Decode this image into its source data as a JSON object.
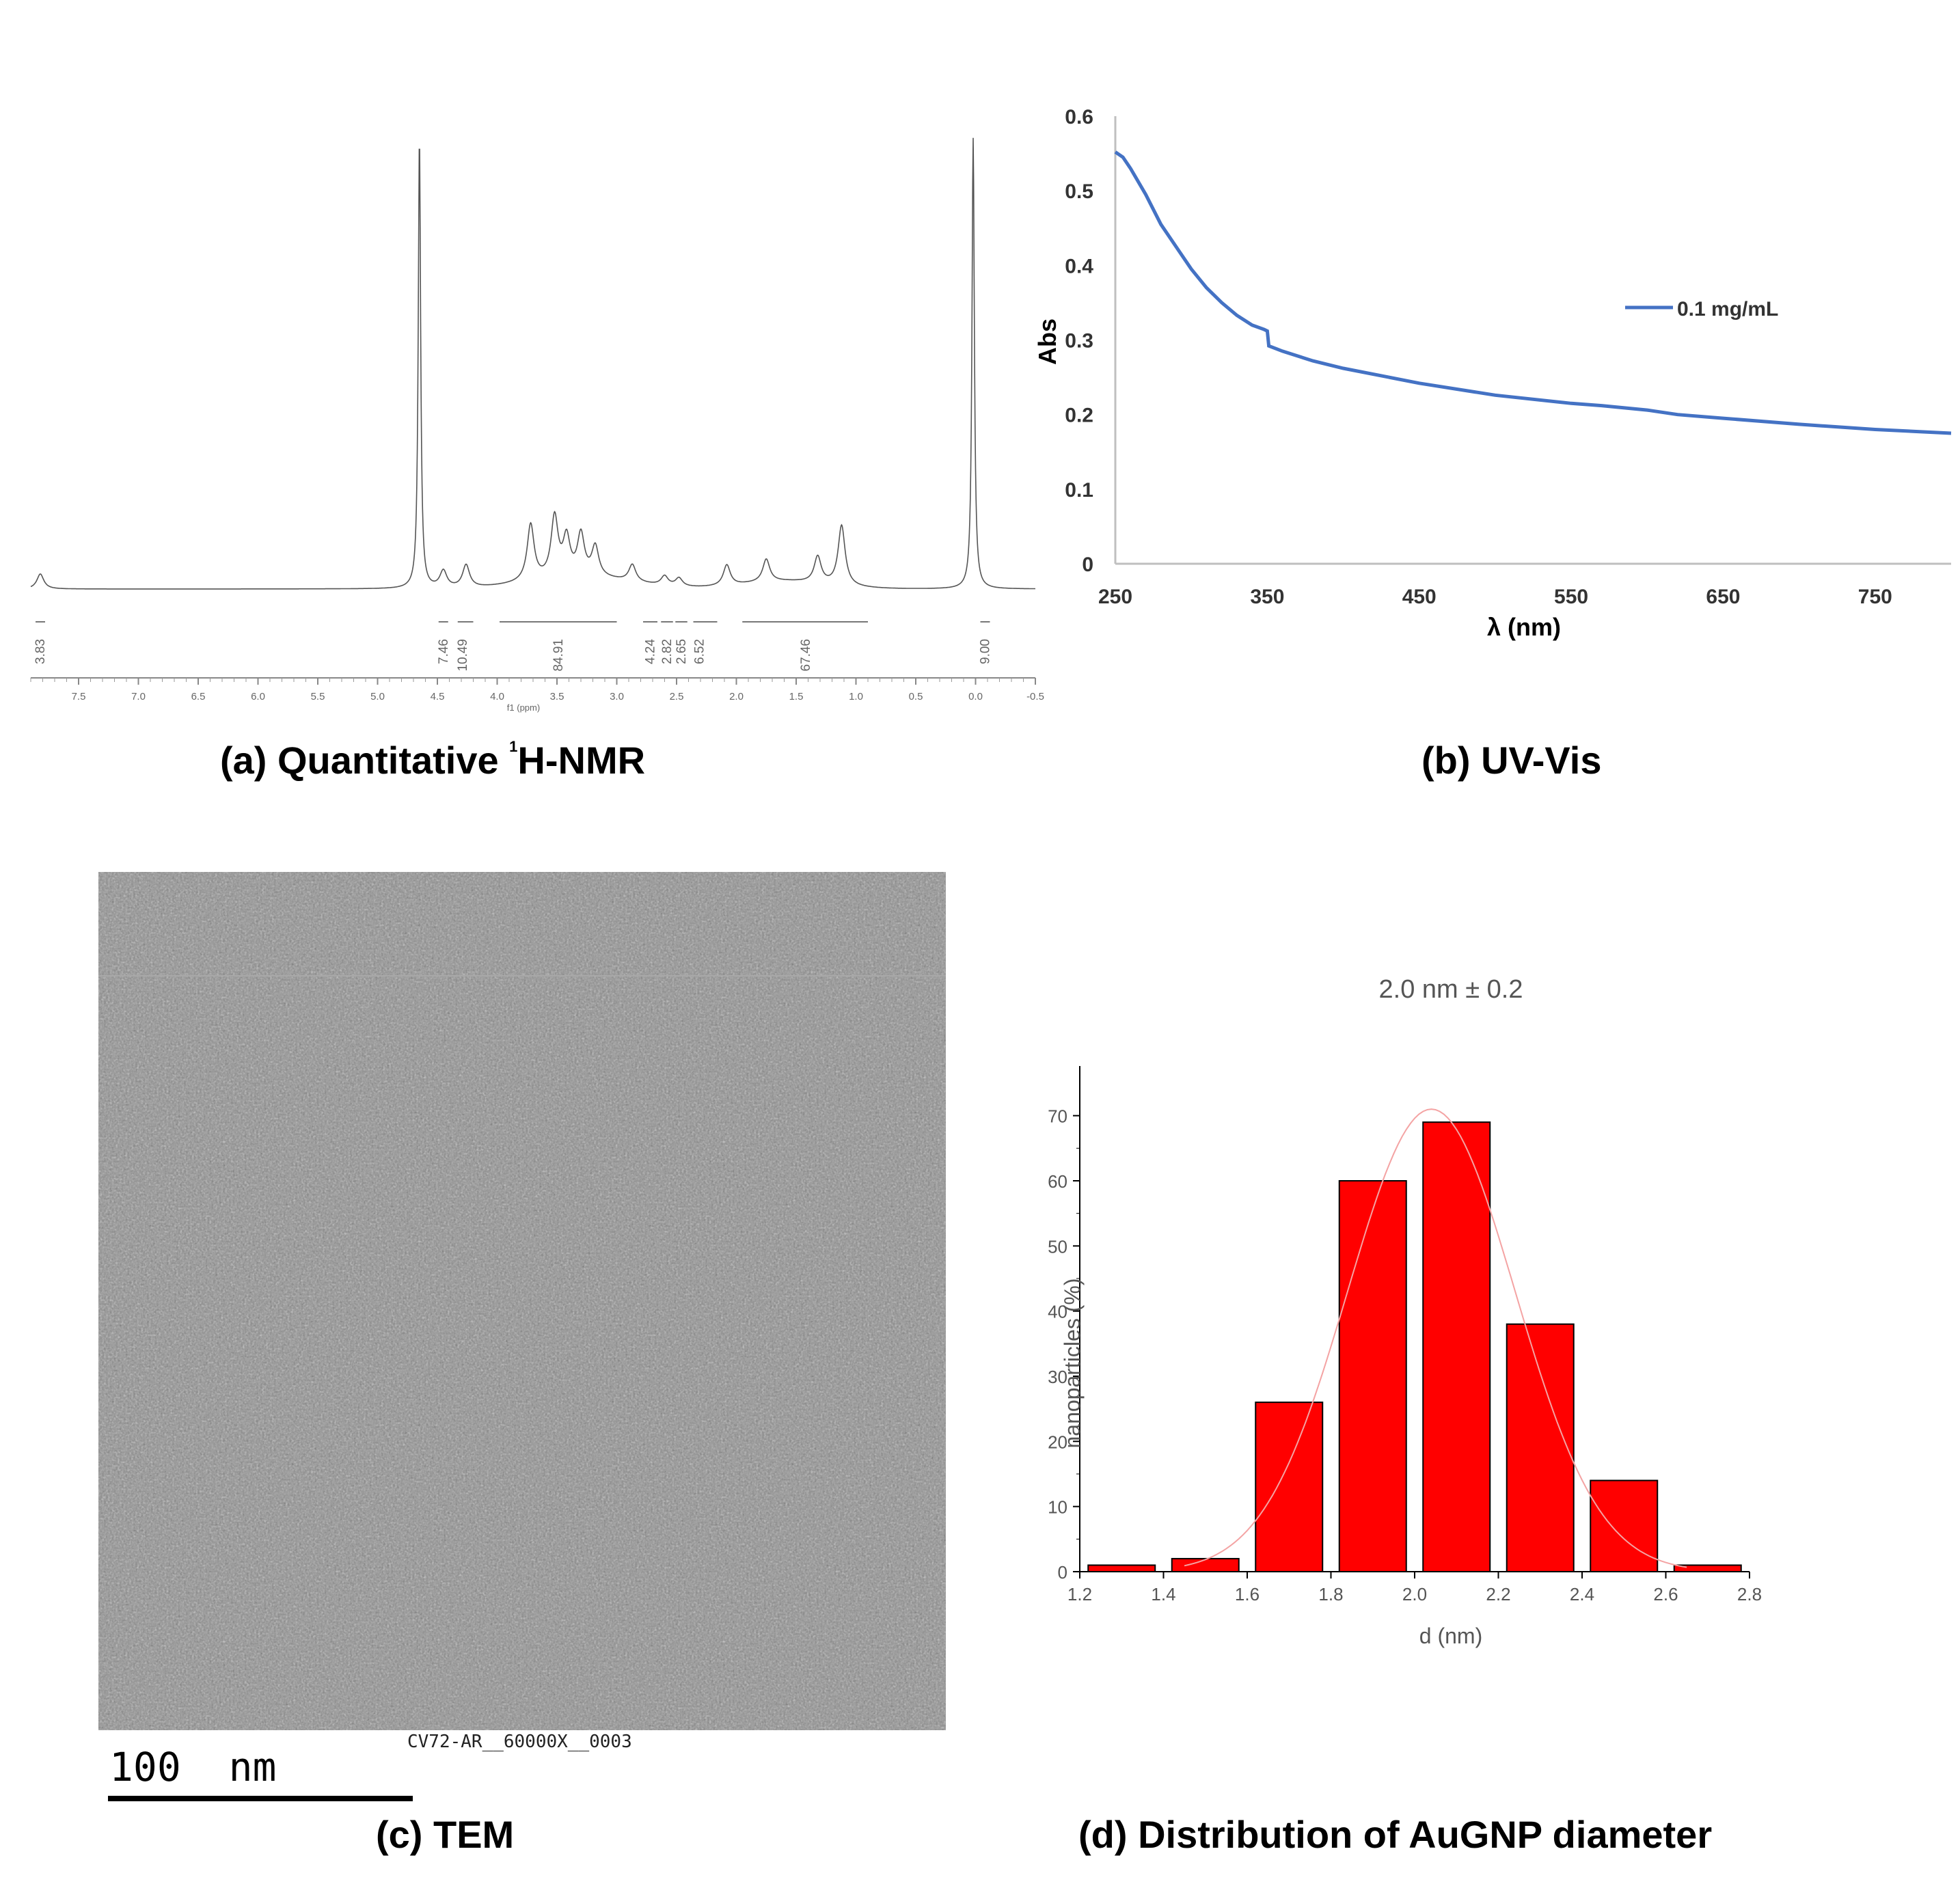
{
  "panels": {
    "a": {
      "caption_prefix": "(a) Quantitative ",
      "caption_super": "1",
      "caption_suffix": "H-NMR",
      "axis_label": "f1 (ppm)"
    },
    "b": {
      "caption": "(b) UV-Vis"
    },
    "c": {
      "caption": "(c) TEM",
      "image_label": "CV72-AR__60000X__0003",
      "scale_bar_label": "100  nm"
    },
    "d": {
      "caption": "(d) Distribution of AuGNP diameter"
    }
  },
  "colors": {
    "uv_line": "#4472c4",
    "bar_fill": "#ff0000",
    "fit_curve": "#f4a3a3",
    "nmr_line": "#555555",
    "tem_gray": "#8f8f8f"
  },
  "chart_data": [
    {
      "id": "nmr",
      "type": "line",
      "x_ticks": [
        "7.5",
        "7.0",
        "6.5",
        "6.0",
        "5.5",
        "5.0",
        "4.5",
        "4.0",
        "3.5",
        "3.0",
        "2.5",
        "2.0",
        "1.5",
        "1.0",
        "0.5",
        "0.0",
        "-0.5"
      ],
      "xlim": [
        7.9,
        -0.5
      ],
      "xlabel": "f1 (ppm)",
      "integrals": [
        {
          "x": 7.82,
          "label": "3.83"
        },
        {
          "x": 4.45,
          "label": "7.46"
        },
        {
          "x": 4.29,
          "label": "10.49"
        },
        {
          "x": 3.49,
          "label": "84.91"
        },
        {
          "x": 2.72,
          "label": "4.24"
        },
        {
          "x": 2.58,
          "label": "2.82"
        },
        {
          "x": 2.46,
          "label": "2.65"
        },
        {
          "x": 2.31,
          "label": "6.52"
        },
        {
          "x": 1.42,
          "label": "67.46"
        },
        {
          "x": -0.08,
          "label": "9.00"
        }
      ],
      "peaks": [
        {
          "ppm": 7.82,
          "height": 0.04
        },
        {
          "ppm": 4.65,
          "height": 1.2
        },
        {
          "ppm": 4.45,
          "height": 0.045
        },
        {
          "ppm": 4.26,
          "height": 0.06
        },
        {
          "ppm": 3.72,
          "height": 0.15
        },
        {
          "ppm": 3.52,
          "height": 0.16
        },
        {
          "ppm": 3.42,
          "height": 0.1
        },
        {
          "ppm": 3.3,
          "height": 0.11
        },
        {
          "ppm": 3.18,
          "height": 0.08
        },
        {
          "ppm": 2.87,
          "height": 0.045
        },
        {
          "ppm": 2.6,
          "height": 0.025
        },
        {
          "ppm": 2.48,
          "height": 0.022
        },
        {
          "ppm": 2.08,
          "height": 0.055
        },
        {
          "ppm": 1.75,
          "height": 0.06
        },
        {
          "ppm": 1.32,
          "height": 0.07
        },
        {
          "ppm": 1.12,
          "height": 0.16
        },
        {
          "ppm": 0.02,
          "height": 1.2
        }
      ]
    },
    {
      "id": "uvvis",
      "type": "line",
      "xlabel": "λ (nm)",
      "ylabel": "Abs",
      "xlim": [
        250,
        800
      ],
      "ylim": [
        0,
        0.6
      ],
      "x_ticks": [
        250,
        350,
        450,
        550,
        650,
        750
      ],
      "y_ticks": [
        "0",
        "0.1",
        "0.2",
        "0.3",
        "0.4",
        "0.5",
        "0.6"
      ],
      "legend_position": "right",
      "series": [
        {
          "name": "0.1 mg/mL",
          "x": [
            250,
            255,
            260,
            270,
            280,
            290,
            300,
            310,
            320,
            330,
            340,
            348,
            350,
            351,
            360,
            380,
            400,
            430,
            450,
            500,
            550,
            570,
            600,
            620,
            650,
            700,
            750,
            800
          ],
          "y": [
            0.552,
            0.545,
            0.53,
            0.495,
            0.455,
            0.425,
            0.395,
            0.37,
            0.35,
            0.333,
            0.32,
            0.314,
            0.312,
            0.292,
            0.285,
            0.272,
            0.262,
            0.25,
            0.242,
            0.226,
            0.215,
            0.212,
            0.206,
            0.2,
            0.195,
            0.187,
            0.18,
            0.175
          ]
        }
      ]
    },
    {
      "id": "histogram",
      "type": "bar",
      "title": "2.0 nm ± 0.2",
      "xlabel": "d (nm)",
      "ylabel": "nanoparticles (%)",
      "xlim": [
        1.2,
        2.8
      ],
      "ylim": [
        0,
        75
      ],
      "x_ticks": [
        "1.2",
        "1.4",
        "1.6",
        "1.8",
        "2.0",
        "2.2",
        "2.4",
        "2.6",
        "2.8"
      ],
      "y_ticks": [
        "0",
        "10",
        "20",
        "30",
        "40",
        "50",
        "60",
        "70"
      ],
      "bins": [
        [
          1.22,
          1.38
        ],
        [
          1.42,
          1.58
        ],
        [
          1.62,
          1.78
        ],
        [
          1.82,
          1.98
        ],
        [
          2.02,
          2.18
        ],
        [
          2.22,
          2.38
        ],
        [
          2.42,
          2.58
        ],
        [
          2.62,
          2.78
        ]
      ],
      "values": [
        1,
        2,
        26,
        60,
        69,
        38,
        14,
        1
      ],
      "fit": {
        "type": "gaussian",
        "mean": 2.04,
        "sigma": 0.2,
        "peak": 71
      }
    }
  ]
}
